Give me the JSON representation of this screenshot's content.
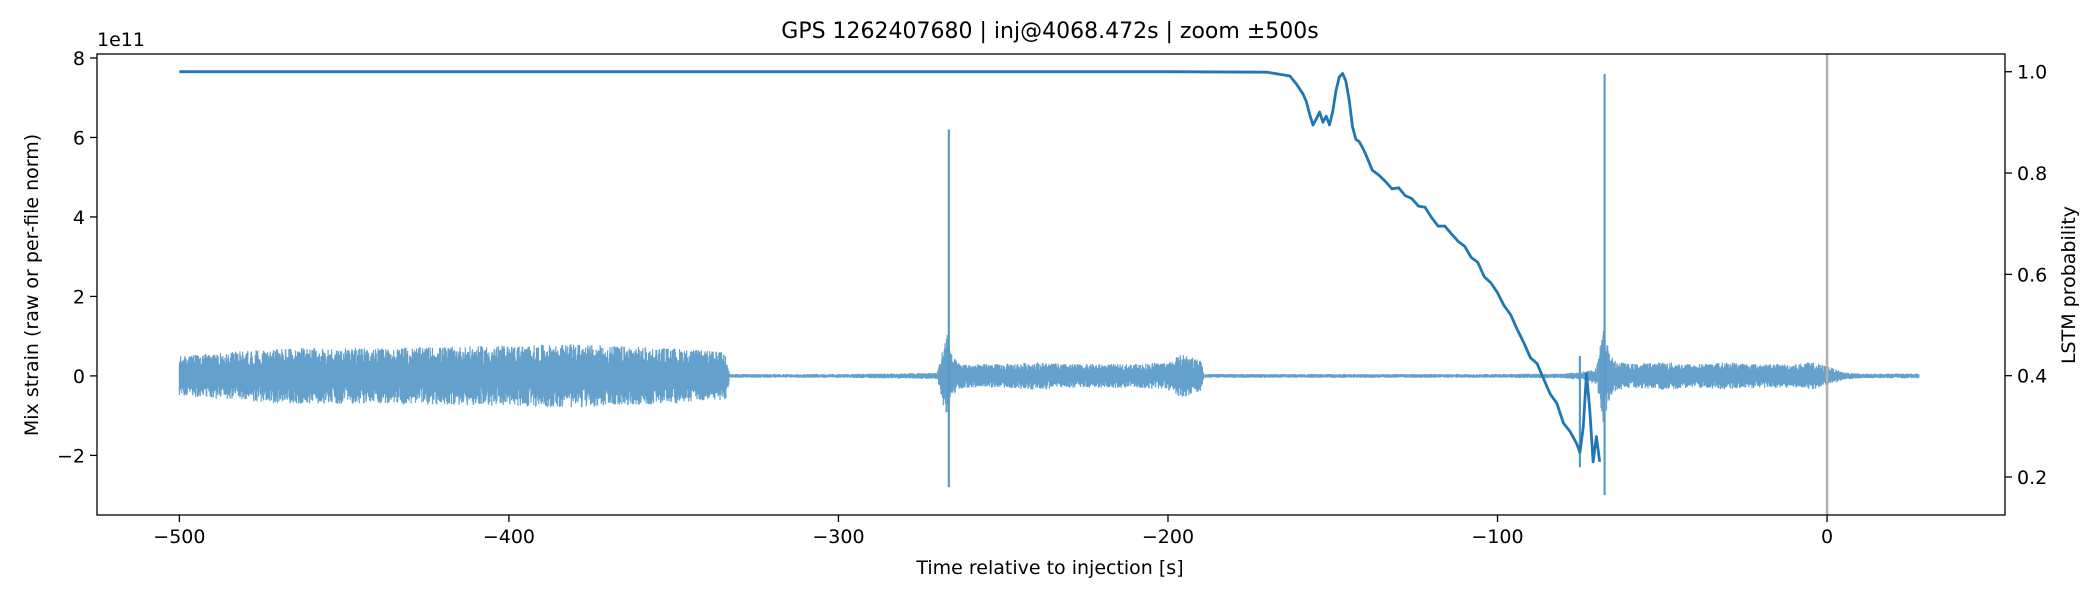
{
  "chart_data": {
    "type": "line",
    "title": "GPS 1262407680 | inj@4068.472s | zoom ±500s",
    "xlabel": "Time relative to injection [s]",
    "ylabel": "Mix strain (raw or per-file norm)",
    "y2label": "LSTM probability",
    "y_offset_label": "1e11",
    "xlim": [
      -525,
      54
    ],
    "ylim": [
      -3.5,
      8.1
    ],
    "y2lim": [
      0.125,
      1.035
    ],
    "x_ticks": [
      -500,
      -400,
      -300,
      -200,
      -100,
      0
    ],
    "x_tick_labels": [
      "−500",
      "−400",
      "−300",
      "−200",
      "−100",
      "0"
    ],
    "y_ticks": [
      -2,
      0,
      2,
      4,
      6,
      8
    ],
    "y_tick_labels": [
      "−2",
      "0",
      "2",
      "4",
      "6",
      "8"
    ],
    "y2_ticks": [
      0.2,
      0.4,
      0.6,
      0.8,
      1.0
    ],
    "y2_tick_labels": [
      "0.2",
      "0.4",
      "0.6",
      "0.8",
      "1.0"
    ],
    "grid": false,
    "legend": "none",
    "injection_marker_x": 0,
    "series": [
      {
        "axis": "left",
        "style": "noise-band",
        "color": "#5b9bc8",
        "x": [
          -500,
          -470,
          -440,
          -410,
          -380,
          -350,
          -334,
          -333,
          -300,
          -270,
          -267,
          -266,
          -264,
          -262,
          -250,
          -240,
          -230,
          -220,
          -210,
          -200,
          -196,
          -190,
          -189,
          -170,
          -140,
          -120,
          -100,
          -80,
          -75,
          -70,
          -68,
          -67,
          -65,
          -60,
          -50,
          -40,
          -30,
          -20,
          -10,
          -5,
          0,
          5,
          10,
          28
        ],
        "amplitude": [
          0.5,
          0.7,
          0.7,
          0.75,
          0.8,
          0.7,
          0.6,
          0.05,
          0.05,
          0.08,
          1.2,
          0.6,
          0.35,
          0.3,
          0.3,
          0.35,
          0.3,
          0.3,
          0.3,
          0.35,
          0.55,
          0.4,
          0.05,
          0.05,
          0.05,
          0.05,
          0.05,
          0.06,
          0.1,
          0.2,
          1.2,
          0.9,
          0.4,
          0.3,
          0.35,
          0.3,
          0.35,
          0.3,
          0.3,
          0.35,
          0.25,
          0.1,
          0.06,
          0.06
        ],
        "spikes": [
          {
            "x": -266.5,
            "min": -2.8,
            "max": 6.2
          },
          {
            "x": -67.5,
            "min": -3.0,
            "max": 7.6
          },
          {
            "x": -75,
            "min": -2.3,
            "max": 0.5
          }
        ]
      },
      {
        "axis": "right",
        "style": "line",
        "color": "#1f77b4",
        "x": [
          -500,
          -450,
          -400,
          -300,
          -200,
          -170,
          -163,
          -161,
          -159,
          -158,
          -157,
          -156,
          -155,
          -154,
          -153,
          -152,
          -151,
          -150,
          -149,
          -148,
          -147,
          -146,
          -145,
          -144,
          -143,
          -142,
          -141,
          -140,
          -138,
          -136,
          -134,
          -132,
          -130,
          -128,
          -126,
          -124,
          -122,
          -120,
          -118,
          -116,
          -114,
          -112,
          -110,
          -108,
          -106,
          -104,
          -102,
          -100,
          -98,
          -96,
          -94,
          -92,
          -90,
          -88,
          -86,
          -84,
          -82,
          -80,
          -78,
          -76,
          -75,
          -74,
          -73,
          -72,
          -71,
          -70,
          -69
        ],
        "y": [
          1.0,
          1.0,
          1.0,
          1.0,
          1.0,
          0.999,
          0.995,
          0.98,
          0.96,
          0.935,
          0.92,
          0.9,
          0.91,
          0.915,
          0.9,
          0.91,
          0.89,
          0.92,
          0.96,
          0.99,
          0.995,
          0.98,
          0.94,
          0.89,
          0.87,
          0.86,
          0.85,
          0.84,
          0.81,
          0.79,
          0.78,
          0.77,
          0.765,
          0.755,
          0.75,
          0.74,
          0.73,
          0.715,
          0.7,
          0.69,
          0.68,
          0.665,
          0.65,
          0.635,
          0.62,
          0.6,
          0.58,
          0.56,
          0.54,
          0.52,
          0.49,
          0.47,
          0.44,
          0.42,
          0.39,
          0.365,
          0.34,
          0.31,
          0.29,
          0.265,
          0.25,
          0.3,
          0.4,
          0.33,
          0.23,
          0.28,
          0.23
        ]
      }
    ]
  }
}
